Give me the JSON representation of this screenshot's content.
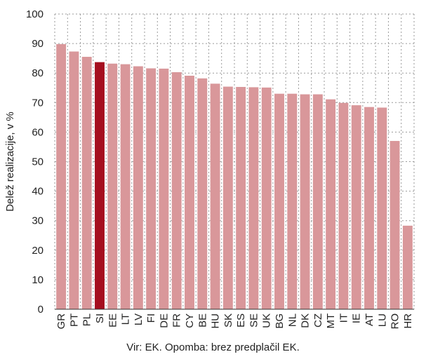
{
  "chart_data": {
    "type": "bar",
    "ylabel": "Delež realizacije, v %",
    "xlabel": "",
    "ylim": [
      0,
      100
    ],
    "yticks": [
      0,
      10,
      20,
      30,
      40,
      50,
      60,
      70,
      80,
      90,
      100
    ],
    "grid": true,
    "categories": [
      "GR",
      "PT",
      "PL",
      "SI",
      "EE",
      "LT",
      "LV",
      "FI",
      "DE",
      "FR",
      "CY",
      "BE",
      "HU",
      "SK",
      "ES",
      "SE",
      "UK",
      "BG",
      "NL",
      "DK",
      "CZ",
      "MT",
      "IT",
      "IE",
      "AT",
      "LU",
      "RO",
      "HR"
    ],
    "values": [
      89.8,
      87.3,
      85.5,
      83.7,
      83.2,
      83.0,
      82.3,
      81.6,
      81.5,
      80.3,
      79.1,
      78.2,
      76.4,
      75.4,
      75.3,
      75.2,
      75.1,
      73.0,
      73.0,
      72.8,
      72.8,
      71.1,
      69.9,
      69.1,
      68.5,
      68.3,
      57.0,
      28.3
    ],
    "highlight_category": "SI",
    "colors": {
      "bar": "#d9979a",
      "highlight": "#a50f1f",
      "grid": "#9a9a9a"
    }
  },
  "footer": {
    "source": "Vir: EK. Opomba: brez predplačil EK."
  }
}
